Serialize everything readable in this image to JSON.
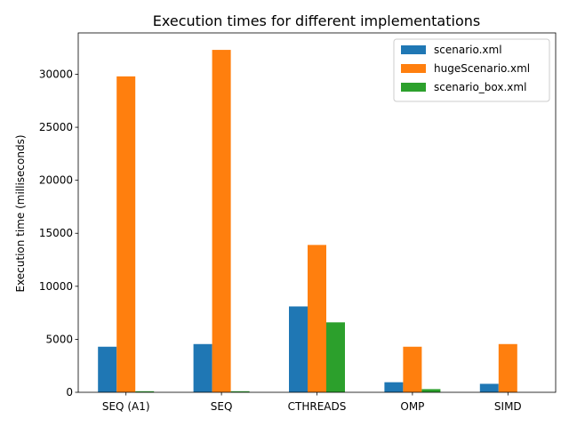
{
  "chart_data": {
    "type": "bar",
    "title": "Execution times for different implementations",
    "xlabel": "",
    "ylabel": "Execution time (milliseconds)",
    "categories": [
      "SEQ (A1)",
      "SEQ",
      "CTHREADS",
      "OMP",
      "SIMD"
    ],
    "series": [
      {
        "name": "scenario.xml",
        "color": "#1f77b4",
        "values": [
          4300,
          4550,
          8100,
          950,
          800
        ]
      },
      {
        "name": "hugeScenario.xml",
        "color": "#ff7f0e",
        "values": [
          29800,
          32300,
          13900,
          4300,
          4550
        ]
      },
      {
        "name": "scenario_box.xml",
        "color": "#2ca02c",
        "values": [
          100,
          100,
          6600,
          300,
          0
        ]
      }
    ],
    "ylim": [
      0,
      33900
    ],
    "yticks": [
      0,
      5000,
      10000,
      15000,
      20000,
      25000,
      30000
    ],
    "legend_position": "top-right",
    "grid": false
  }
}
